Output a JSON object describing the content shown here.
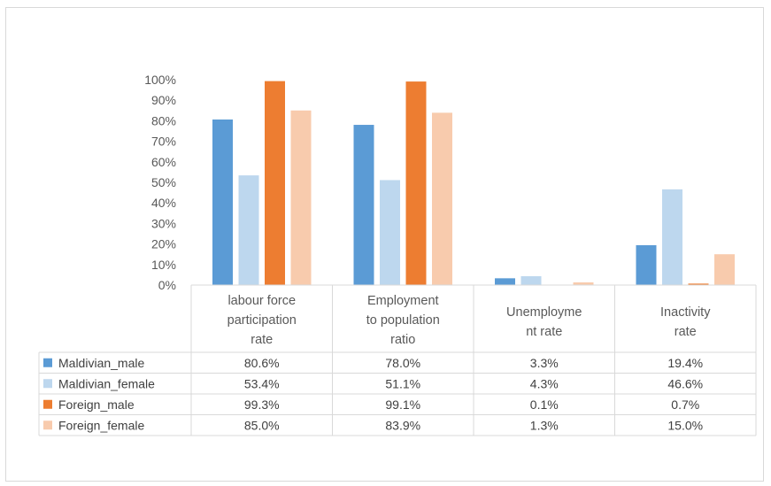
{
  "chart_data": {
    "type": "bar",
    "categories": [
      [
        "labour force",
        "participation",
        "rate"
      ],
      [
        "Employment",
        "to population",
        "ratio"
      ],
      [
        "Unemployme",
        "nt rate"
      ],
      [
        "Inactivity",
        "rate"
      ]
    ],
    "ylim": [
      0,
      100
    ],
    "yticks": [
      "0%",
      "10%",
      "20%",
      "30%",
      "40%",
      "50%",
      "60%",
      "70%",
      "80%",
      "90%",
      "100%"
    ],
    "series": [
      {
        "name": "Maldivian_male",
        "color": "#5b9bd5",
        "values": [
          80.6,
          78.0,
          3.3,
          19.4
        ],
        "labels": [
          "80.6%",
          "78.0%",
          "3.3%",
          "19.4%"
        ]
      },
      {
        "name": "Maldivian_female",
        "color": "#bdd7ee",
        "values": [
          53.4,
          51.1,
          4.3,
          46.6
        ],
        "labels": [
          "53.4%",
          "51.1%",
          "4.3%",
          "46.6%"
        ]
      },
      {
        "name": "Foreign_male",
        "color": "#ed7d31",
        "values": [
          99.3,
          99.1,
          0.1,
          0.7
        ],
        "labels": [
          "99.3%",
          "99.1%",
          "0.1%",
          "0.7%"
        ]
      },
      {
        "name": "Foreign_female",
        "color": "#f8cbad",
        "values": [
          85.0,
          83.9,
          1.3,
          15.0
        ],
        "labels": [
          "85.0%",
          "83.9%",
          "1.3%",
          "15.0%"
        ]
      }
    ],
    "gridlines": false,
    "legend": "data-table"
  }
}
